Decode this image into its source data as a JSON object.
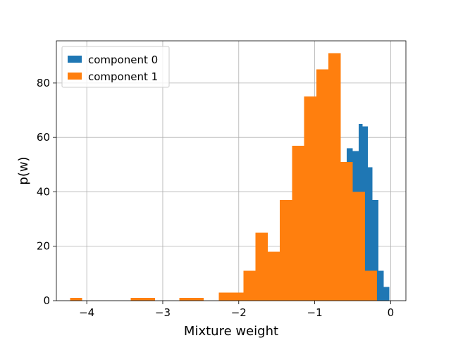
{
  "chart_data": {
    "type": "bar",
    "title": "",
    "xlabel": "Mixture weight",
    "ylabel": "p(w)",
    "xlim": [
      -4.4,
      0.2
    ],
    "ylim": [
      0,
      95.5
    ],
    "x_ticks": [
      -4,
      -3,
      -2,
      -1,
      0
    ],
    "x_tick_labels": [
      "−4",
      "−3",
      "−2",
      "−1",
      "0"
    ],
    "y_ticks": [
      0,
      20,
      40,
      60,
      80
    ],
    "y_tick_labels": [
      "0",
      "20",
      "40",
      "60",
      "80"
    ],
    "grid": true,
    "legend_position": "top-left",
    "series": [
      {
        "name": "component 0",
        "color": "#1f77b4",
        "bins": [
          {
            "x0": -0.58,
            "x1": -0.5,
            "value": 56
          },
          {
            "x0": -0.5,
            "x1": -0.42,
            "value": 55
          },
          {
            "x0": -0.42,
            "x1": -0.37,
            "value": 65
          },
          {
            "x0": -0.37,
            "x1": -0.3,
            "value": 64
          },
          {
            "x0": -0.3,
            "x1": -0.24,
            "value": 49
          },
          {
            "x0": -0.24,
            "x1": -0.16,
            "value": 37
          },
          {
            "x0": -0.16,
            "x1": -0.09,
            "value": 11
          },
          {
            "x0": -0.09,
            "x1": -0.02,
            "value": 5
          }
        ]
      },
      {
        "name": "component 1",
        "color": "#ff7f0e",
        "bins": [
          {
            "x0": -4.22,
            "x1": -4.06,
            "value": 1
          },
          {
            "x0": -3.42,
            "x1": -3.1,
            "value": 1
          },
          {
            "x0": -2.78,
            "x1": -2.46,
            "value": 1
          },
          {
            "x0": -2.26,
            "x1": -1.94,
            "value": 3
          },
          {
            "x0": -1.94,
            "x1": -1.78,
            "value": 11
          },
          {
            "x0": -1.78,
            "x1": -1.62,
            "value": 25
          },
          {
            "x0": -1.62,
            "x1": -1.46,
            "value": 18
          },
          {
            "x0": -1.46,
            "x1": -1.3,
            "value": 37
          },
          {
            "x0": -1.3,
            "x1": -1.14,
            "value": 57
          },
          {
            "x0": -1.14,
            "x1": -0.98,
            "value": 75
          },
          {
            "x0": -0.98,
            "x1": -0.82,
            "value": 85
          },
          {
            "x0": -0.82,
            "x1": -0.66,
            "value": 91
          },
          {
            "x0": -0.66,
            "x1": -0.5,
            "value": 51
          },
          {
            "x0": -0.5,
            "x1": -0.34,
            "value": 40
          },
          {
            "x0": -0.34,
            "x1": -0.18,
            "value": 11
          }
        ]
      }
    ]
  }
}
